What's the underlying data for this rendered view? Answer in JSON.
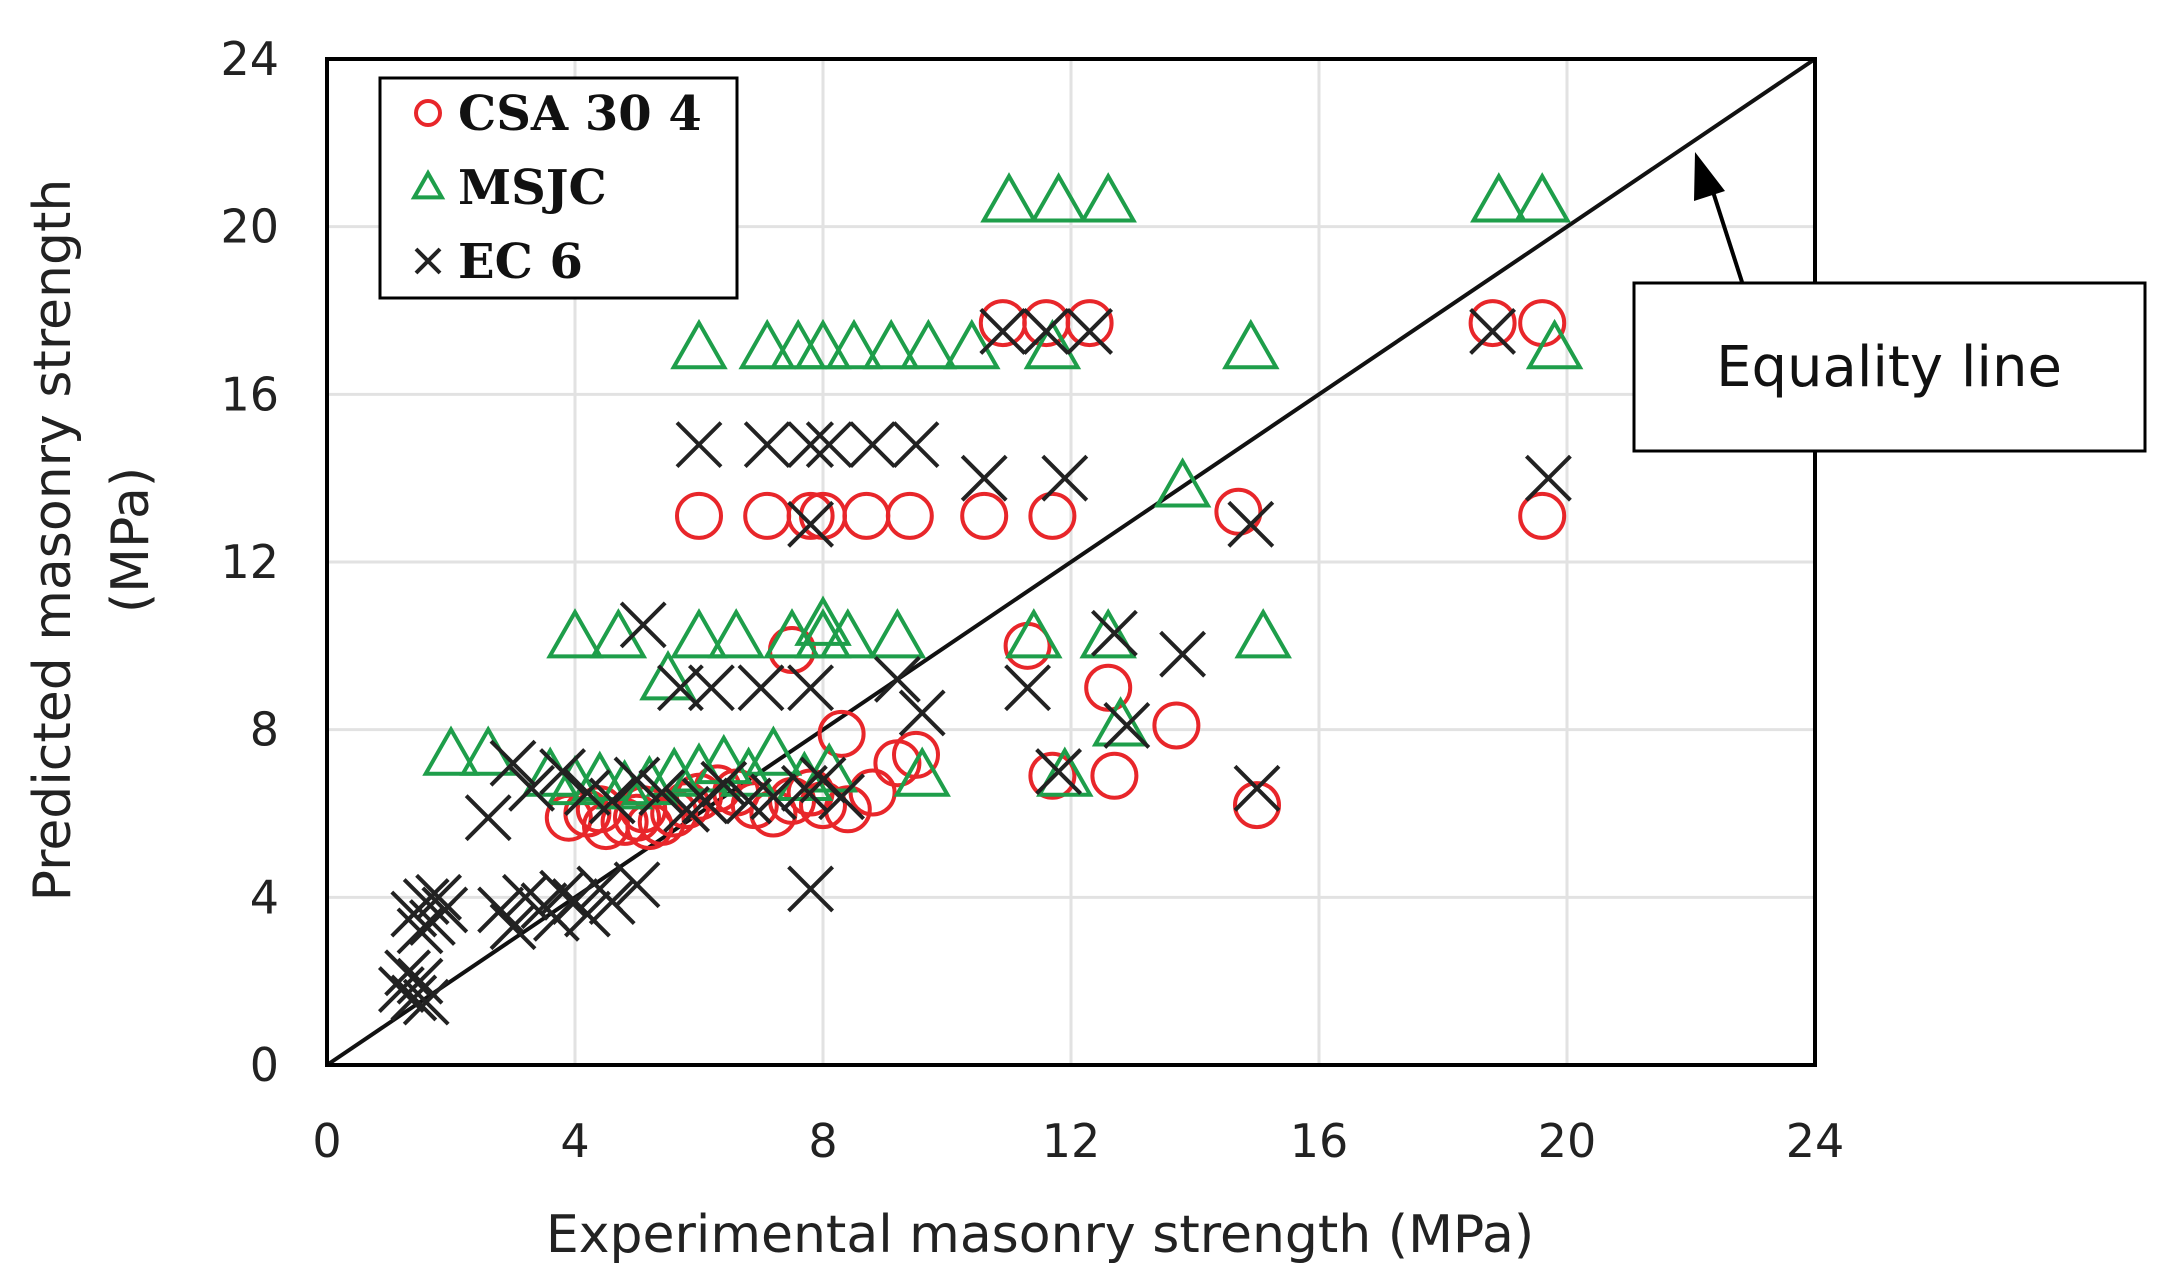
{
  "chart_data": {
    "type": "scatter",
    "xlabel": "Experimental masonry strength (MPa)",
    "ylabel_line1": "Predicted masonry strength",
    "ylabel_line2": "(MPa)",
    "xlim": [
      0,
      24
    ],
    "ylim": [
      0,
      24
    ],
    "xticks": [
      0,
      4,
      8,
      12,
      16,
      20,
      24
    ],
    "yticks": [
      0,
      4,
      8,
      12,
      16,
      20,
      24
    ],
    "grid": true,
    "legend_position": "top-left",
    "annotation": {
      "text": "Equality line",
      "points_to": [
        22,
        22
      ]
    },
    "equality_line": {
      "from": [
        0,
        0
      ],
      "to": [
        24,
        24
      ]
    },
    "series": [
      {
        "name": "CSA 30 4",
        "marker": "circle",
        "color": "#e8262a",
        "points": [
          [
            3.9,
            5.9
          ],
          [
            4.2,
            6.0
          ],
          [
            4.5,
            5.7
          ],
          [
            4.8,
            5.8
          ],
          [
            5.0,
            5.9
          ],
          [
            5.2,
            5.7
          ],
          [
            5.4,
            5.8
          ],
          [
            5.6,
            6.0
          ],
          [
            5.8,
            6.2
          ],
          [
            6.0,
            6.4
          ],
          [
            6.3,
            6.6
          ],
          [
            6.6,
            6.5
          ],
          [
            6.9,
            6.2
          ],
          [
            7.2,
            6.0
          ],
          [
            7.5,
            6.3
          ],
          [
            7.8,
            6.5
          ],
          [
            8.0,
            6.2
          ],
          [
            8.4,
            6.1
          ],
          [
            8.8,
            6.5
          ],
          [
            4.4,
            6.1
          ],
          [
            5.1,
            6.1
          ],
          [
            6.0,
            13.1
          ],
          [
            7.1,
            13.1
          ],
          [
            7.8,
            13.1
          ],
          [
            8.0,
            13.1
          ],
          [
            8.7,
            13.1
          ],
          [
            9.4,
            13.1
          ],
          [
            10.6,
            13.1
          ],
          [
            11.7,
            13.1
          ],
          [
            7.5,
            9.9
          ],
          [
            11.3,
            10.0
          ],
          [
            8.3,
            7.9
          ],
          [
            9.2,
            7.2
          ],
          [
            9.5,
            7.4
          ],
          [
            12.6,
            9.0
          ],
          [
            13.7,
            8.1
          ],
          [
            12.7,
            6.9
          ],
          [
            11.7,
            6.9
          ],
          [
            14.7,
            13.2
          ],
          [
            15.0,
            6.2
          ],
          [
            19.6,
            13.1
          ],
          [
            10.9,
            17.7
          ],
          [
            11.6,
            17.7
          ],
          [
            12.3,
            17.7
          ],
          [
            18.8,
            17.7
          ],
          [
            19.6,
            17.7
          ]
        ]
      },
      {
        "name": "MSJC",
        "marker": "triangle",
        "color": "#1e9e4a",
        "points": [
          [
            2.0,
            7.4
          ],
          [
            2.6,
            7.4
          ],
          [
            3.6,
            6.9
          ],
          [
            4.0,
            6.7
          ],
          [
            4.4,
            6.8
          ],
          [
            4.8,
            6.6
          ],
          [
            5.2,
            6.7
          ],
          [
            5.6,
            6.9
          ],
          [
            6.0,
            7.0
          ],
          [
            6.4,
            7.2
          ],
          [
            6.8,
            6.9
          ],
          [
            7.2,
            7.4
          ],
          [
            7.7,
            6.8
          ],
          [
            8.1,
            7.0
          ],
          [
            9.6,
            6.9
          ],
          [
            11.9,
            6.9
          ],
          [
            4.0,
            10.2
          ],
          [
            4.7,
            10.2
          ],
          [
            6.0,
            10.2
          ],
          [
            6.6,
            10.2
          ],
          [
            7.5,
            10.2
          ],
          [
            8.0,
            10.2
          ],
          [
            8.4,
            10.2
          ],
          [
            9.2,
            10.2
          ],
          [
            5.5,
            9.2
          ],
          [
            8.0,
            10.5
          ],
          [
            11.4,
            10.2
          ],
          [
            12.6,
            10.2
          ],
          [
            12.8,
            8.1
          ],
          [
            15.1,
            10.2
          ],
          [
            13.8,
            13.8
          ],
          [
            6.0,
            17.1
          ],
          [
            7.1,
            17.1
          ],
          [
            7.6,
            17.1
          ],
          [
            8.0,
            17.1
          ],
          [
            8.5,
            17.1
          ],
          [
            9.1,
            17.1
          ],
          [
            9.7,
            17.1
          ],
          [
            10.4,
            17.1
          ],
          [
            11.7,
            17.1
          ],
          [
            14.9,
            17.1
          ],
          [
            19.8,
            17.1
          ],
          [
            11.0,
            20.6
          ],
          [
            11.8,
            20.6
          ],
          [
            12.6,
            20.6
          ],
          [
            18.9,
            20.6
          ],
          [
            19.6,
            20.6
          ]
        ]
      },
      {
        "name": "EC 6",
        "marker": "x",
        "color": "#222222",
        "points": [
          [
            1.2,
            1.8
          ],
          [
            1.3,
            2.2
          ],
          [
            1.4,
            1.6
          ],
          [
            1.5,
            2.0
          ],
          [
            1.6,
            1.5
          ],
          [
            1.4,
            3.6
          ],
          [
            1.6,
            3.9
          ],
          [
            1.7,
            3.4
          ],
          [
            1.9,
            3.7
          ],
          [
            1.5,
            3.2
          ],
          [
            1.8,
            4.0
          ],
          [
            2.8,
            3.7
          ],
          [
            3.0,
            3.3
          ],
          [
            3.2,
            4.0
          ],
          [
            3.5,
            3.8
          ],
          [
            3.7,
            3.5
          ],
          [
            3.8,
            4.1
          ],
          [
            4.0,
            3.9
          ],
          [
            4.2,
            3.6
          ],
          [
            4.4,
            4.2
          ],
          [
            4.6,
            3.9
          ],
          [
            5.0,
            4.3
          ],
          [
            2.6,
            5.9
          ],
          [
            3.0,
            7.2
          ],
          [
            3.3,
            6.6
          ],
          [
            3.8,
            7.0
          ],
          [
            4.2,
            6.5
          ],
          [
            4.6,
            6.3
          ],
          [
            5.0,
            6.8
          ],
          [
            5.4,
            6.5
          ],
          [
            5.8,
            6.1
          ],
          [
            6.1,
            6.3
          ],
          [
            6.4,
            6.7
          ],
          [
            6.8,
            6.3
          ],
          [
            7.2,
            6.4
          ],
          [
            7.7,
            6.6
          ],
          [
            8.0,
            6.8
          ],
          [
            8.3,
            6.4
          ],
          [
            5.1,
            10.5
          ],
          [
            5.7,
            9.0
          ],
          [
            6.2,
            9.0
          ],
          [
            7.0,
            9.0
          ],
          [
            7.8,
            9.0
          ],
          [
            9.6,
            8.4
          ],
          [
            9.2,
            9.2
          ],
          [
            11.3,
            9.0
          ],
          [
            7.8,
            4.2
          ],
          [
            11.8,
            7.0
          ],
          [
            12.7,
            10.3
          ],
          [
            12.9,
            8.1
          ],
          [
            13.8,
            9.8
          ],
          [
            15.0,
            6.6
          ],
          [
            6.0,
            14.8
          ],
          [
            7.1,
            14.8
          ],
          [
            7.8,
            14.8
          ],
          [
            8.1,
            14.8
          ],
          [
            8.8,
            14.8
          ],
          [
            9.5,
            14.8
          ],
          [
            10.6,
            14.0
          ],
          [
            11.9,
            14.0
          ],
          [
            7.8,
            12.9
          ],
          [
            14.9,
            12.9
          ],
          [
            19.7,
            14.0
          ],
          [
            10.9,
            17.5
          ],
          [
            11.6,
            17.5
          ],
          [
            12.3,
            17.5
          ],
          [
            18.8,
            17.5
          ]
        ]
      }
    ]
  }
}
